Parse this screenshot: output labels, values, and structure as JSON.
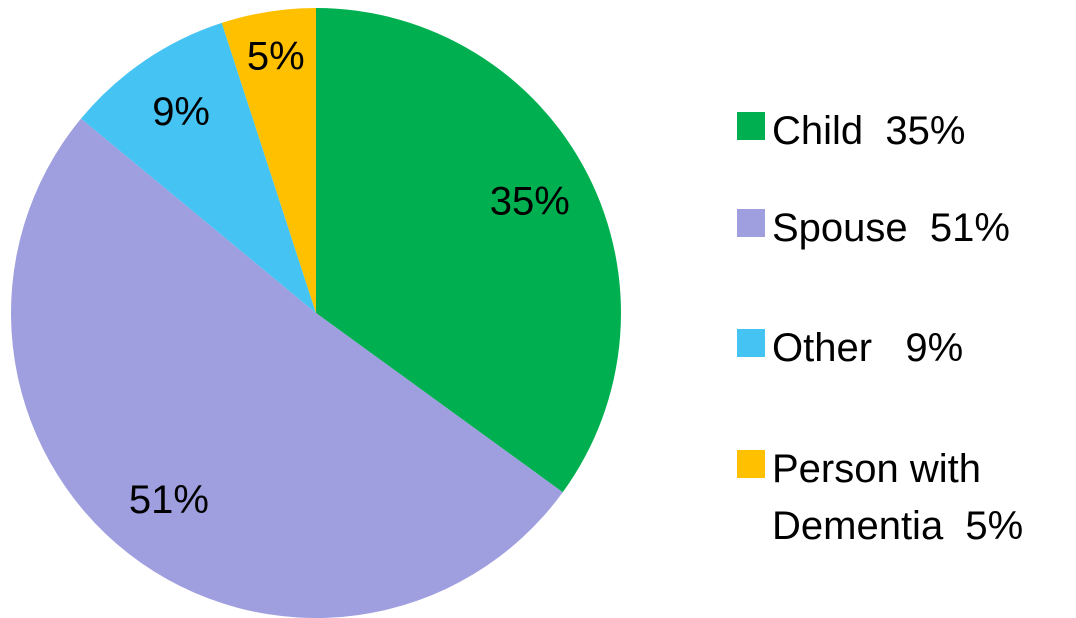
{
  "chart_data": {
    "type": "pie",
    "categories": [
      "Child  35%",
      "Spouse  51%",
      "Other   9%",
      "Person with Dementia  5%"
    ],
    "values": [
      35,
      51,
      9,
      5
    ],
    "value_labels": [
      "35%",
      "51%",
      "9%",
      "5%"
    ],
    "colors": [
      "#00b050",
      "#9f9fdf",
      "#45c3f3",
      "#ffc000"
    ]
  }
}
